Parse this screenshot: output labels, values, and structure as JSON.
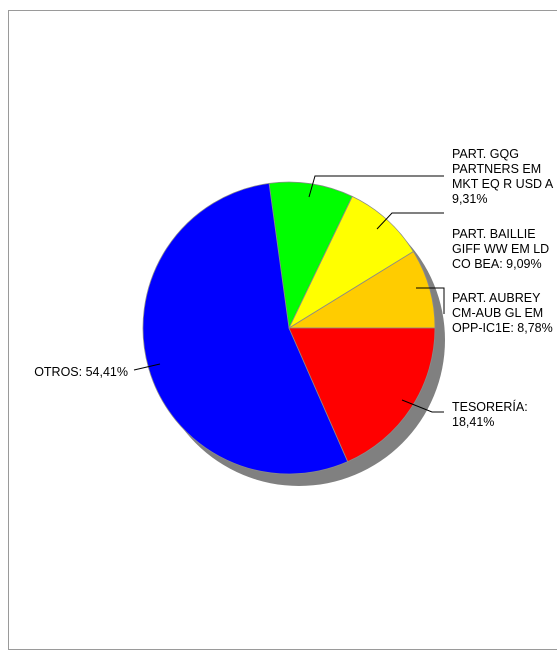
{
  "chart_data": {
    "type": "pie",
    "title": "",
    "shadow": true,
    "slices": [
      {
        "label": [
          "PART. AUBREY",
          "CM-AUB GL EM",
          "OPP-IC1E: 8,78%"
        ],
        "value": 8.78,
        "color": "#ffcc00"
      },
      {
        "label": [
          "PART. BAILLIE",
          "GIFF WW EM LD",
          "CO BEA: 9,09%"
        ],
        "value": 9.09,
        "color": "#ffff00"
      },
      {
        "label": [
          "PART. GQG",
          "PARTNERS EM",
          "MKT EQ R USD A",
          "9,31%"
        ],
        "value": 9.31,
        "color": "#00ff00"
      },
      {
        "label": [
          "OTROS: 54,41%"
        ],
        "value": 54.41,
        "color": "#0000ff"
      },
      {
        "label": [
          "TESORERÍA:",
          "18,41%"
        ],
        "value": 18.41,
        "color": "#ff0000"
      }
    ]
  }
}
